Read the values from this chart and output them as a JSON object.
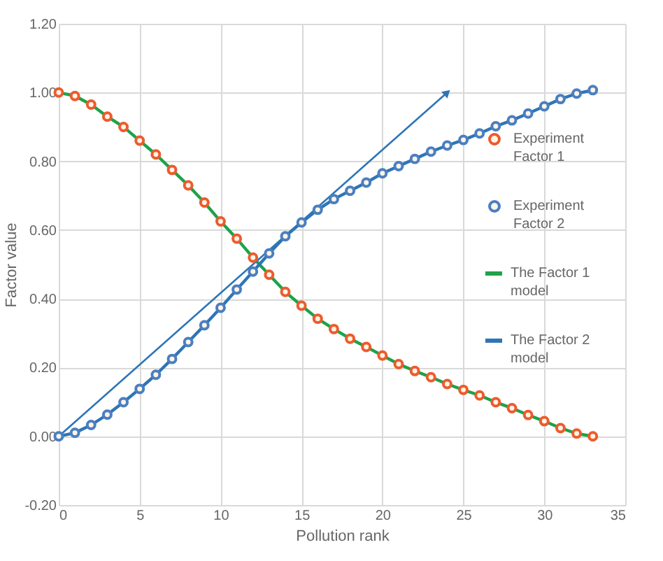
{
  "chart_data": {
    "type": "scatter",
    "xlabel": "Pollution rank",
    "ylabel": "Factor value",
    "x": [
      0,
      1,
      2,
      3,
      4,
      5,
      6,
      7,
      8,
      9,
      10,
      11,
      12,
      13,
      14,
      15,
      16,
      17,
      18,
      19,
      20,
      21,
      22,
      23,
      24,
      25,
      26,
      27,
      28,
      29,
      30,
      31,
      32,
      33
    ],
    "xlim": [
      0,
      35
    ],
    "xticks": [
      0,
      5,
      10,
      15,
      20,
      25,
      30,
      35
    ],
    "ylim": [
      -0.2,
      1.2
    ],
    "yticks": [
      {
        "value": -0.2,
        "label": "-0.20"
      },
      {
        "value": 0,
        "label": "0.00"
      },
      {
        "value": 0.2,
        "label": "0.20"
      },
      {
        "value": 0.4,
        "label": "0.40"
      },
      {
        "value": 0.6,
        "label": "0.60"
      },
      {
        "value": 0.8,
        "label": "0.80"
      },
      {
        "value": 1.0,
        "label": "1.00"
      },
      {
        "value": 1.2,
        "label": "1.20"
      }
    ],
    "grid": true,
    "legend": "right",
    "series": [
      {
        "name": "Experiment Factor 1",
        "marker": "circle",
        "color": "#ed5b2d",
        "values": [
          1.0,
          0.99,
          0.965,
          0.93,
          0.9,
          0.86,
          0.82,
          0.775,
          0.73,
          0.68,
          0.625,
          0.575,
          0.52,
          0.47,
          0.42,
          0.38,
          0.342,
          0.312,
          0.284,
          0.26,
          0.235,
          0.21,
          0.19,
          0.172,
          0.152,
          0.135,
          0.119,
          0.099,
          0.082,
          0.062,
          0.044,
          0.024,
          0.008,
          0.0
        ]
      },
      {
        "name": "Experiment Factor 2",
        "marker": "circle",
        "color": "#4a7fc1",
        "values": [
          0.0,
          0.01,
          0.033,
          0.063,
          0.099,
          0.138,
          0.179,
          0.225,
          0.274,
          0.323,
          0.374,
          0.427,
          0.479,
          0.532,
          0.582,
          0.622,
          0.659,
          0.69,
          0.714,
          0.738,
          0.765,
          0.786,
          0.807,
          0.828,
          0.846,
          0.862,
          0.881,
          0.902,
          0.919,
          0.939,
          0.96,
          0.981,
          0.997,
          1.007
        ]
      },
      {
        "name": "The Factor 1 model",
        "type": "line",
        "marker": "none",
        "color": "#1fa24a",
        "values": [
          1.0,
          0.99,
          0.965,
          0.93,
          0.9,
          0.86,
          0.82,
          0.775,
          0.73,
          0.68,
          0.625,
          0.575,
          0.52,
          0.47,
          0.42,
          0.38,
          0.342,
          0.312,
          0.284,
          0.26,
          0.235,
          0.21,
          0.19,
          0.172,
          0.152,
          0.135,
          0.119,
          0.099,
          0.082,
          0.062,
          0.044,
          0.024,
          0.008,
          0.0
        ]
      },
      {
        "name": "The Factor 2 model",
        "type": "line",
        "marker": "none",
        "color": "#2e75b6",
        "values": [
          0.0,
          0.01,
          0.033,
          0.063,
          0.099,
          0.138,
          0.179,
          0.225,
          0.274,
          0.323,
          0.374,
          0.427,
          0.479,
          0.532,
          0.582,
          0.622,
          0.659,
          0.69,
          0.714,
          0.738,
          0.765,
          0.786,
          0.807,
          0.828,
          0.846,
          0.862,
          0.881,
          0.902,
          0.919,
          0.939,
          0.96,
          0.981,
          0.997,
          1.007
        ]
      },
      {
        "type": "line",
        "color": "#2e75b6",
        "x": [
          0,
          24
        ],
        "values": [
          0,
          1.0
        ]
      }
    ]
  }
}
